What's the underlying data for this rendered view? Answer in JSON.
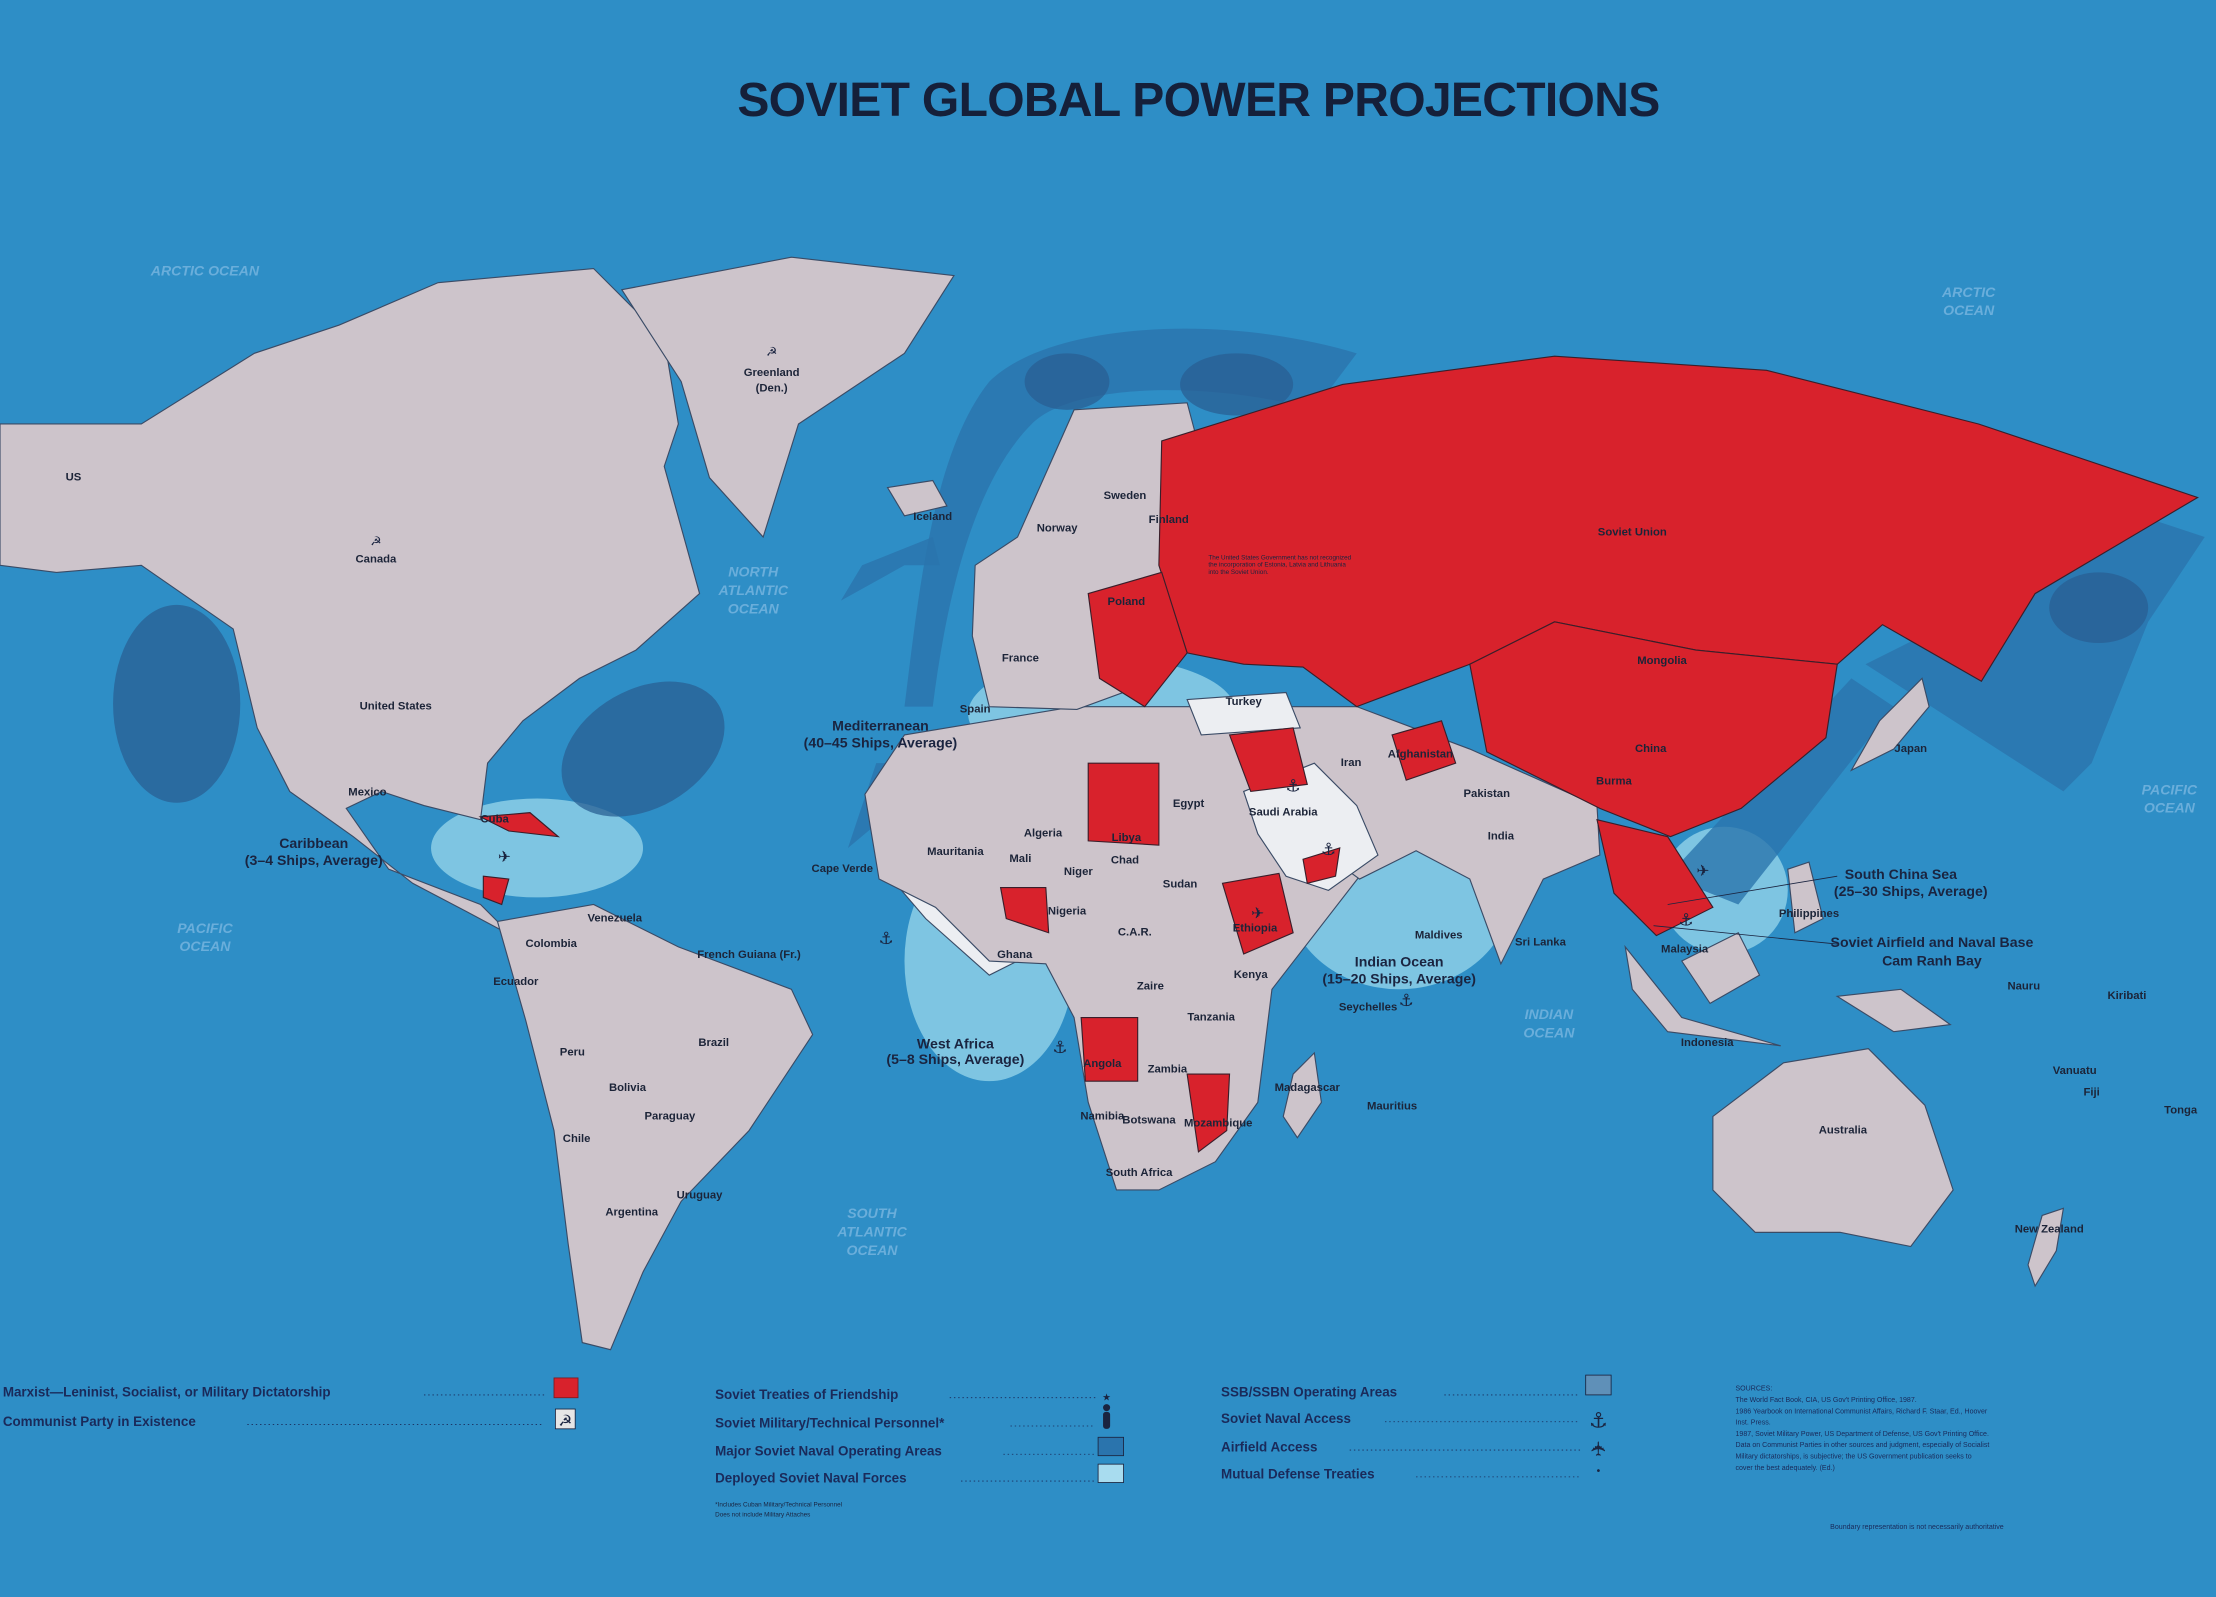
{
  "title": "SOVIET GLOBAL POWER PROJECTIONS",
  "colors": {
    "ocean": "#2e8ec6",
    "land": "#cdc4cb",
    "marxist_regime": "#d8222c",
    "treaty_country": "#eceef2",
    "deployed_naval_forces": "#8ccfe6",
    "major_naval_operating_areas": "#2a74ad",
    "ssb_ssbn_operating_areas": "#2a5f93"
  },
  "map": {
    "oceans": [
      "ARCTIC",
      "OCEAN",
      "ARCTIC",
      "OCEAN",
      "NORTH",
      "ATLANTIC",
      "OCEAN",
      "PACIFIC",
      "OCEAN",
      "PACIFIC",
      "OCEAN",
      "SOUTH",
      "ATLANTIC",
      "OCEAN",
      "INDIAN",
      "OCEAN"
    ],
    "countries": [
      "US",
      "Canada",
      "United States",
      "Greenland",
      "(Den.)",
      "Iceland",
      "Mexico",
      "Cuba",
      "Venezuela",
      "Colombia",
      "Ecuador",
      "Peru",
      "Brazil",
      "Bolivia",
      "Paraguay",
      "Chile",
      "Argentina",
      "Uruguay",
      "Norway",
      "Sweden",
      "Finland",
      "Poland",
      "France",
      "Spain",
      "Turkey",
      "Iran",
      "Afghanistan",
      "Pakistan",
      "India",
      "Mongolia",
      "China",
      "Soviet Union",
      "Algeria",
      "Libya",
      "Egypt",
      "Saudi Arabia",
      "Mali",
      "Niger",
      "Chad",
      "Sudan",
      "Ethiopia",
      "C.A.R.",
      "Zaire",
      "Angola",
      "Zambia",
      "Mozambique",
      "Madagascar",
      "South Africa",
      "Tanzania",
      "Kenya",
      "Nigeria",
      "Ghana",
      "Namibia",
      "Botswana",
      "Australia",
      "Indonesia",
      "Malaysia",
      "Philippines",
      "New Zealand",
      "Japan",
      "Sri Lanka",
      "Maldives",
      "Burma",
      "Nauru",
      "Kiribati",
      "Vanuatu",
      "Fiji",
      "Tonga",
      "Mauritius",
      "Seychelles",
      "French Guiana (Fr.)",
      "Cape Verde",
      "Mauritania"
    ],
    "naval_areas": [
      "Mediterranean",
      "(40–45 Ships, Average)",
      "Caribbean",
      "(3–4 Ships, Average)",
      "West Africa",
      "(5–8 Ships, Average)",
      "Indian Ocean",
      "(15–20 Ships, Average)",
      "South China Sea",
      "(25–30 Ships, Average)",
      "Soviet Airfield and Naval Base",
      "Cam Ranh Bay"
    ],
    "baltic_note": [
      "The United States Government has not recognized",
      "the incorporation of Estonia, Latvia and Lithuania",
      "into the Soviet Union."
    ]
  },
  "legend": {
    "left": [
      {
        "label": "Marxist—Leninist, Socialist, or Military Dictatorship",
        "symbol": "red-fill-swatch"
      },
      {
        "label": "Communist Party in Existence",
        "symbol": "hammer-sickle-icon",
        "glyph": "☭"
      }
    ],
    "middle": [
      {
        "label": "Soviet Treaties of Friendship",
        "symbol": "star-icon",
        "glyph": "★"
      },
      {
        "label": "Soviet Military/Technical Personnel*",
        "symbol": "person-icon",
        "glyph": "🯅"
      },
      {
        "label": "Major Soviet Naval Operating Areas",
        "symbol": "dark-blue-swatch"
      },
      {
        "label": "Deployed Soviet Naval Forces",
        "symbol": "light-blue-swatch"
      }
    ],
    "footnote": [
      "*Includes Cuban Military/Technical Personnel",
      "Does not include Military Attaches"
    ],
    "right": [
      {
        "label": "SSB/SSBN Operating Areas",
        "symbol": "gray-blue-swatch"
      },
      {
        "label": "Soviet Naval Access",
        "symbol": "anchor-icon",
        "glyph": "⚓"
      },
      {
        "label": "Airfield Access",
        "symbol": "airplane-icon",
        "glyph": "✈"
      },
      {
        "label": "Mutual Defense Treaties",
        "symbol": "dot-icon",
        "glyph": "•"
      }
    ]
  },
  "sources": {
    "heading": "SOURCES:",
    "lines": [
      "The World Fact Book, CIA, US Gov't Printing Office, 1987.",
      "1986 Yearbook on International Communist Affairs, Richard F. Staar, Ed., Hoover",
      "   Inst. Press.",
      "1987, Soviet Military Power, US Department of Defense, US Gov't Printing Office.",
      "Data on Communist Parties in other sources and judgment, especially of Socialist",
      "   Military dictatorships, is subjective; the US Government publication seeks to",
      "   cover the best adequately. (Ed.)"
    ],
    "boundary_note": "Boundary representation is not necessarily authoritative"
  }
}
